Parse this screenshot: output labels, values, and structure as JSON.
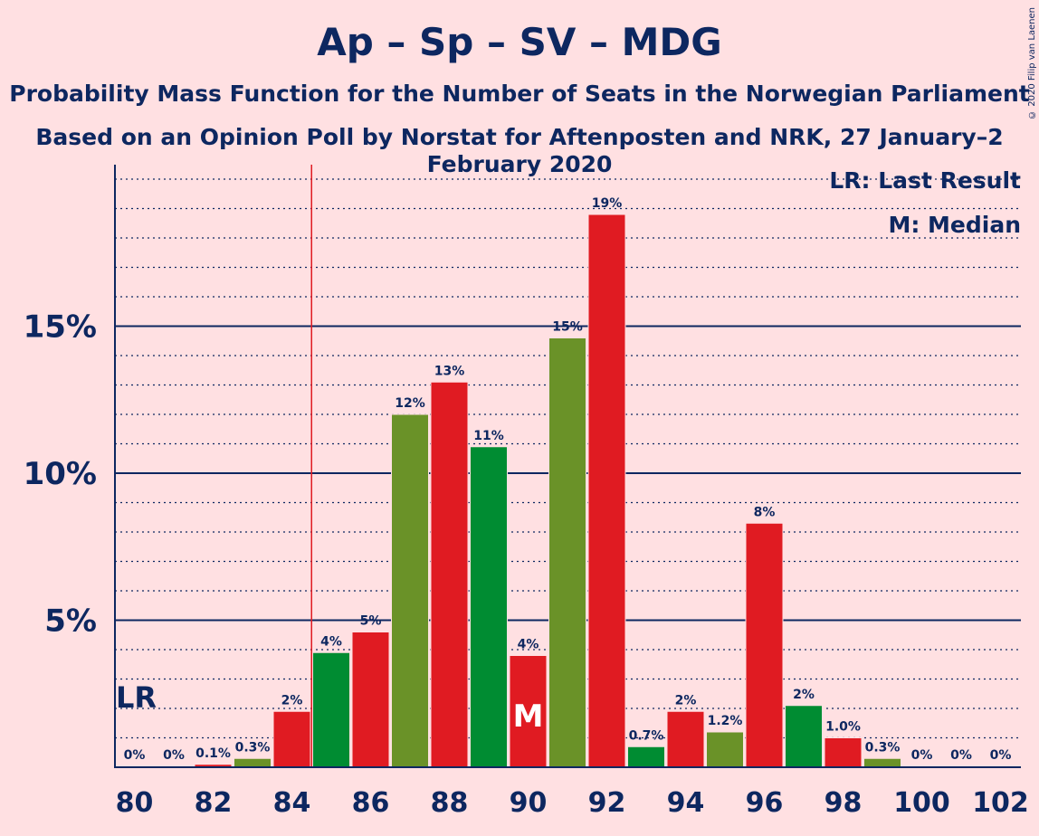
{
  "title": "Ap – Sp – SV – MDG",
  "subtitle1": "Probability Mass Function for the Number of Seats in the Norwegian Parliament",
  "subtitle2": "Based on an Opinion Poll by Norstat for Aftenposten and NRK, 27 January–2 February 2020",
  "copyright": "© 2020 Filip van Laenen",
  "legend": {
    "lr": "LR: Last Result",
    "median": "M: Median"
  },
  "markers": {
    "last_result_label": "LR",
    "median_label": "M"
  },
  "colors": {
    "background": "#FFE0E2",
    "axis": "#0D2760",
    "bar_olive": "#6A9228",
    "bar_red": "#E01B22",
    "bar_green": "#008C32",
    "last_result_line": "#E01B22"
  },
  "chart_data": {
    "type": "bar",
    "x": [
      80,
      81,
      82,
      83,
      84,
      85,
      86,
      87,
      88,
      89,
      90,
      91,
      92,
      93,
      94,
      95,
      96,
      97,
      98,
      99,
      100,
      101,
      102
    ],
    "values": [
      0,
      0,
      0.1,
      0.3,
      1.9,
      3.9,
      4.6,
      12.0,
      13.1,
      10.9,
      3.8,
      14.6,
      18.8,
      0.7,
      1.9,
      1.2,
      8.3,
      2.1,
      1.0,
      0.3,
      0,
      0,
      0
    ],
    "labels": [
      "0%",
      "0%",
      "0.1%",
      "0.3%",
      "2%",
      "4%",
      "5%",
      "12%",
      "13%",
      "11%",
      "4%",
      "15%",
      "19%",
      "0.7%",
      "2%",
      "1.2%",
      "8%",
      "2%",
      "1.0%",
      "0.3%",
      "0%",
      "0%",
      "0%"
    ],
    "bar_colors": [
      "olive",
      "red",
      "red",
      "olive",
      "red",
      "green",
      "red",
      "olive",
      "red",
      "green",
      "red",
      "olive",
      "red",
      "green",
      "red",
      "olive",
      "red",
      "green",
      "red",
      "olive",
      "red",
      "green",
      "red"
    ],
    "xticks": [
      "80",
      "82",
      "84",
      "86",
      "88",
      "90",
      "92",
      "94",
      "96",
      "98",
      "100",
      "102"
    ],
    "xtick_values": [
      80,
      82,
      84,
      86,
      88,
      90,
      92,
      94,
      96,
      98,
      100,
      102
    ],
    "yticks": [
      "5%",
      "10%",
      "15%"
    ],
    "ytick_values": [
      5,
      10,
      15
    ],
    "ylim": [
      0,
      20.5
    ],
    "minor_grid_step": 1,
    "last_result": 85,
    "median": 90,
    "xlabel": "",
    "ylabel": ""
  }
}
